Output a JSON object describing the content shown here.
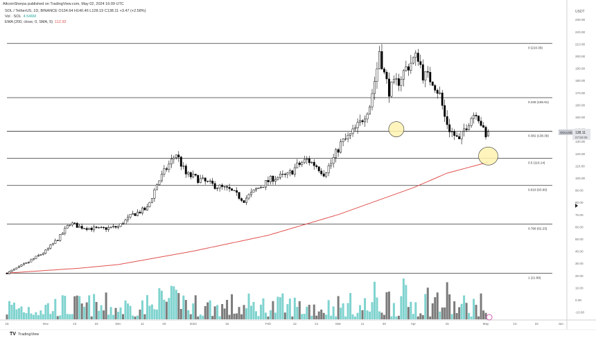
{
  "header": {
    "publisher": "AltcoinSherpa published on TradingView.com, May 02, 2024 16:09 UTC",
    "symbol_line": "SOL / TetherUS, 1D, BINANCE  O134.64  H140.46  L128.19  C138.11  +3.47 (+2.58%)",
    "vol_label": "Vol · SOL",
    "vol_value": "4.546M",
    "ema_label": "EMA (200, close, 0, SMA, 5)",
    "ema_value": "112.92"
  },
  "footer": {
    "brand": "TradingView"
  },
  "colors": {
    "up": "#ffffff",
    "down": "#000000",
    "vol_up": "#7fd3cf",
    "vol_down": "#7b7b7b",
    "ema": "#e0504e",
    "marker": "#fff3b0"
  },
  "chart_data": {
    "type": "candlestick",
    "currency": "USDT",
    "ylim": [
      -15,
      235
    ],
    "y_ticks": [
      "230.00",
      "220.00",
      "210.00",
      "200.00",
      "190.00",
      "180.00",
      "170.00",
      "160.00",
      "150.00",
      "140.00",
      "130.00",
      "120.00",
      "110.00",
      "100.00",
      "90.00",
      "80.00",
      "70.00",
      "60.00",
      "50.00",
      "40.00",
      "30.00",
      "20.00",
      "10.00",
      "0.00",
      "-10.00"
    ],
    "y_tick_values": [
      230,
      220,
      210,
      200,
      190,
      180,
      170,
      160,
      150,
      140,
      130,
      120,
      110,
      100,
      90,
      80,
      70,
      60,
      50,
      40,
      30,
      20,
      10,
      0,
      -10
    ],
    "x_ticks": [
      {
        "label": "16",
        "day": 0
      },
      {
        "label": "Nov",
        "day": 16
      },
      {
        "label": "13",
        "day": 28
      },
      {
        "label": "22",
        "day": 37
      },
      {
        "label": "Dec",
        "day": 46
      },
      {
        "label": "11",
        "day": 56
      },
      {
        "label": "20",
        "day": 65
      },
      {
        "label": "2024",
        "day": 77
      },
      {
        "label": "15",
        "day": 91
      },
      {
        "label": "Feb",
        "day": 108
      },
      {
        "label": "12",
        "day": 119
      },
      {
        "label": "21",
        "day": 128
      },
      {
        "label": "Mar",
        "day": 137
      },
      {
        "label": "11",
        "day": 147
      },
      {
        "label": "20",
        "day": 156
      },
      {
        "label": "Apr",
        "day": 168
      },
      {
        "label": "15",
        "day": 182
      },
      {
        "label": "May",
        "day": 198
      },
      {
        "label": "13",
        "day": 210
      },
      {
        "label": "22",
        "day": 219
      },
      {
        "label": "Jun",
        "day": 229
      }
    ],
    "close_anchors": [
      [
        0,
        22
      ],
      [
        8,
        30
      ],
      [
        16,
        40
      ],
      [
        22,
        52
      ],
      [
        26,
        63
      ],
      [
        30,
        60
      ],
      [
        38,
        58
      ],
      [
        46,
        60
      ],
      [
        52,
        70
      ],
      [
        58,
        75
      ],
      [
        62,
        95
      ],
      [
        66,
        108
      ],
      [
        70,
        120
      ],
      [
        74,
        103
      ],
      [
        78,
        100
      ],
      [
        84,
        95
      ],
      [
        92,
        90
      ],
      [
        98,
        82
      ],
      [
        104,
        92
      ],
      [
        110,
        100
      ],
      [
        116,
        102
      ],
      [
        120,
        110
      ],
      [
        124,
        115
      ],
      [
        128,
        110
      ],
      [
        131,
        104
      ],
      [
        134,
        112
      ],
      [
        138,
        128
      ],
      [
        142,
        135
      ],
      [
        146,
        145
      ],
      [
        150,
        160
      ],
      [
        153,
        190
      ],
      [
        154,
        205
      ],
      [
        156,
        185
      ],
      [
        158,
        172
      ],
      [
        162,
        180
      ],
      [
        165,
        190
      ],
      [
        168,
        197
      ],
      [
        170,
        200
      ],
      [
        172,
        185
      ],
      [
        176,
        180
      ],
      [
        179,
        168
      ],
      [
        181,
        150
      ],
      [
        183,
        140
      ],
      [
        185,
        135
      ],
      [
        187,
        130
      ],
      [
        189,
        140
      ],
      [
        192,
        150
      ],
      [
        194,
        155
      ],
      [
        196,
        145
      ],
      [
        198,
        132
      ],
      [
        199,
        138
      ]
    ],
    "ema_anchors": [
      [
        0,
        22
      ],
      [
        30,
        26
      ],
      [
        46,
        29
      ],
      [
        77,
        40
      ],
      [
        108,
        53
      ],
      [
        137,
        70
      ],
      [
        168,
        92
      ],
      [
        182,
        104
      ],
      [
        199,
        113
      ]
    ],
    "fib_levels": [
      {
        "label": "0 (210.39)",
        "value": 210.39
      },
      {
        "label": "0.236 (165.91)",
        "value": 165.91
      },
      {
        "label": "0.382 (138.39)",
        "value": 138.39
      },
      {
        "label": "0.5 (116.14)",
        "value": 116.14
      },
      {
        "label": "0.618 (93.90)",
        "value": 93.9
      },
      {
        "label": "0.786 (62.23)",
        "value": 62.23
      },
      {
        "label": "1 (21.89)",
        "value": 21.89
      }
    ],
    "highlight_markers": [
      {
        "day": 161,
        "price": 140
      },
      {
        "day": 199,
        "price": 118
      }
    ],
    "last_price": {
      "symbol": "SOLUSDT",
      "price": "138.11",
      "countdown": "07:50:08"
    }
  }
}
